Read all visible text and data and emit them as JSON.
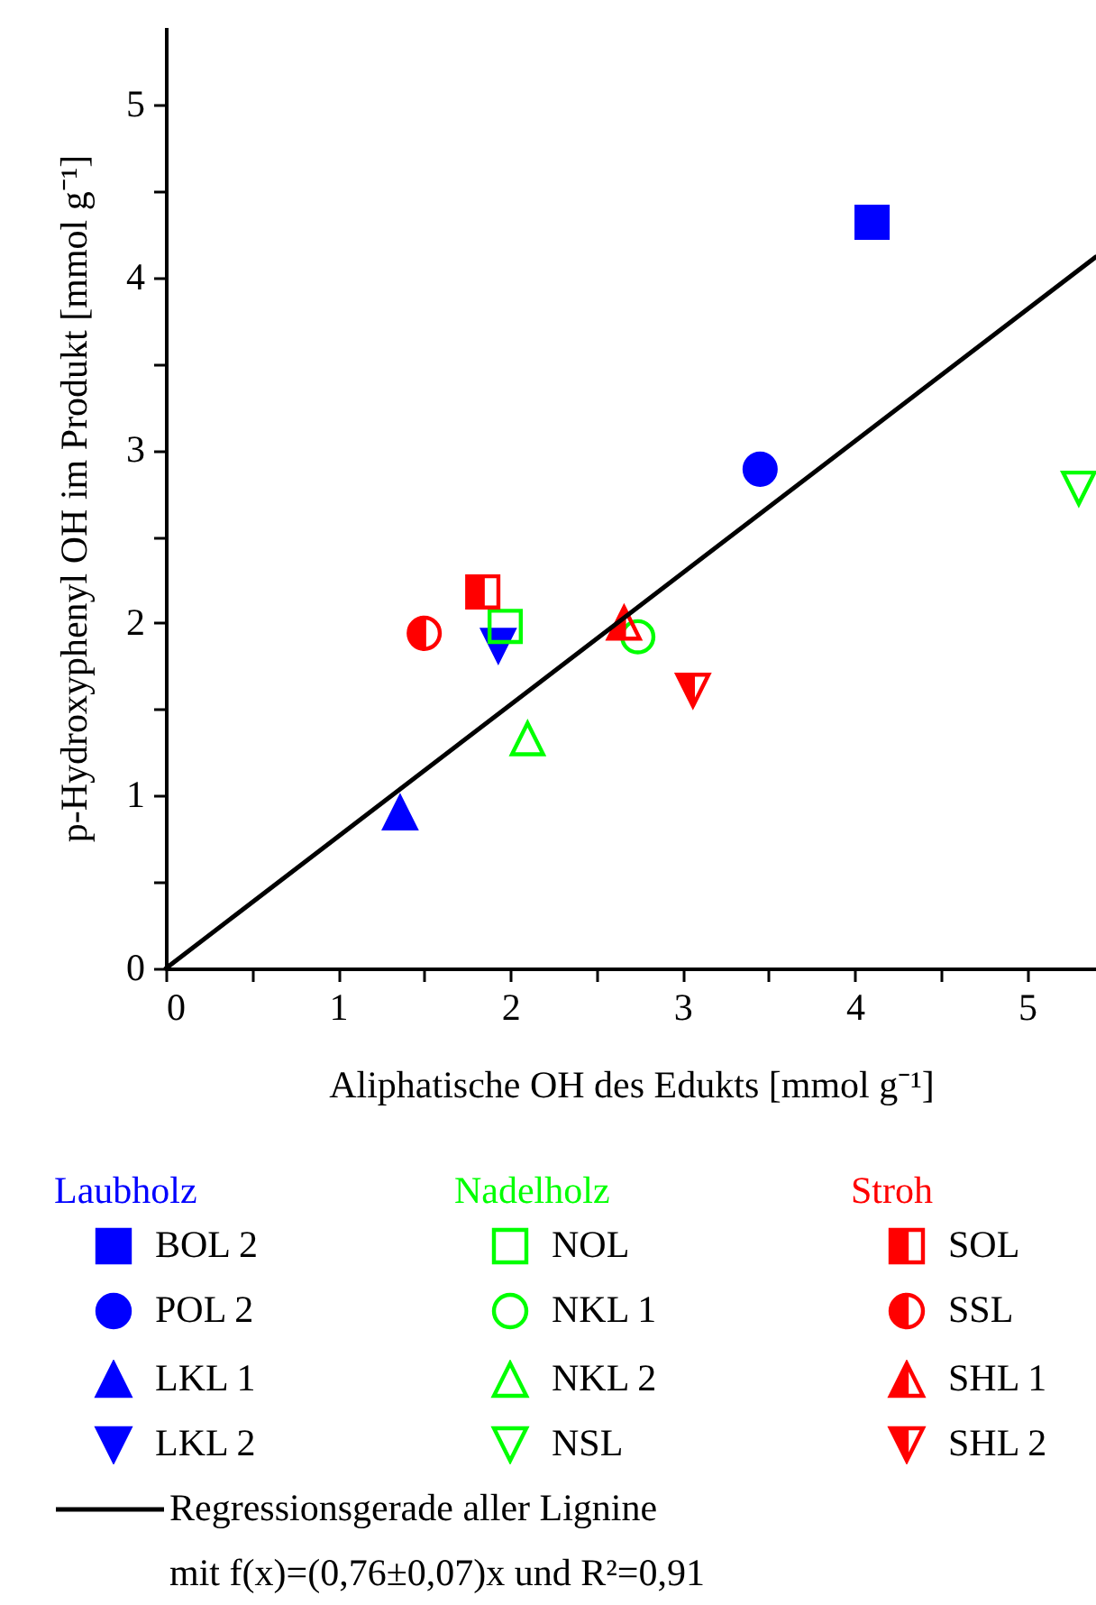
{
  "chart_data": {
    "type": "scatter",
    "xlabel": "Aliphatische OH des Edukts [mmol g⁻¹]",
    "ylabel": "p-Hydroxyphenyl OH im Produkt [mmol g⁻¹]",
    "xlim": [
      0,
      5.4
    ],
    "ylim": [
      0,
      5.45
    ],
    "xticks": [
      0,
      {
        "value": 0.5,
        "label": null
      },
      1,
      {
        "value": 1.5,
        "label": null
      },
      2,
      {
        "value": 2.5,
        "label": null
      },
      3,
      {
        "value": 3.5,
        "label": null
      },
      4,
      {
        "value": 4.5,
        "label": null
      },
      5
    ],
    "yticks": [
      0,
      {
        "value": 0.5,
        "label": null
      },
      1,
      {
        "value": 1.5,
        "label": null
      },
      2,
      {
        "value": 2.5,
        "label": null
      },
      3,
      {
        "value": 3.5,
        "label": null
      },
      4,
      {
        "value": 4.5,
        "label": null
      },
      5
    ],
    "grid": false,
    "legend": "bottom",
    "annotations": [
      "Laubholz",
      "Nadelholz",
      "Stroh",
      "mit f(x)=(0,76±0,07)x und R²=0,91"
    ],
    "series": [
      {
        "name": "BOL 2",
        "color": "#0000ff",
        "marker": "square",
        "x": [
          4.1
        ],
        "values": [
          4.32
        ]
      },
      {
        "name": "POL 2",
        "color": "#0000ff",
        "marker": "circle",
        "x": [
          3.45
        ],
        "values": [
          2.89
        ]
      },
      {
        "name": "LKL 1",
        "color": "#0000ff",
        "marker": "triangle",
        "x": [
          1.36
        ],
        "values": [
          0.9
        ]
      },
      {
        "name": "LKL 2",
        "color": "#0000ff",
        "marker": "triangle-down",
        "x": [
          1.93
        ],
        "values": [
          1.87
        ]
      },
      {
        "name": "NOL",
        "color": "#00ff00",
        "marker": "square-open",
        "x": [
          1.97
        ],
        "values": [
          1.98
        ]
      },
      {
        "name": "NKL 1",
        "color": "#00ff00",
        "marker": "circle-open",
        "x": [
          2.74
        ],
        "values": [
          1.92
        ]
      },
      {
        "name": "NKL 2",
        "color": "#00ff00",
        "marker": "triangle-open",
        "x": [
          2.1
        ],
        "values": [
          1.33
        ]
      },
      {
        "name": "NSL",
        "color": "#00ff00",
        "marker": "triangle-down-open",
        "x": [
          5.3
        ],
        "values": [
          2.78
        ]
      },
      {
        "name": "SOL",
        "color": "#ff0000",
        "marker": "square-half",
        "x": [
          1.84
        ],
        "values": [
          2.18
        ]
      },
      {
        "name": "SSL",
        "color": "#ff0000",
        "marker": "circle-half",
        "x": [
          1.5
        ],
        "values": [
          1.94
        ]
      },
      {
        "name": "SHL 1",
        "color": "#ff0000",
        "marker": "triangle-half",
        "x": [
          2.66
        ],
        "values": [
          2.0
        ]
      },
      {
        "name": "SHL 2",
        "color": "#ff0000",
        "marker": "triangle-down-half",
        "x": [
          3.06
        ],
        "values": [
          1.61
        ]
      },
      {
        "name": "Regressionsgerade aller Lignine",
        "type": "line",
        "color": "#000000",
        "x": [
          0,
          5.4
        ],
        "values": [
          0,
          4.12
        ]
      }
    ]
  }
}
